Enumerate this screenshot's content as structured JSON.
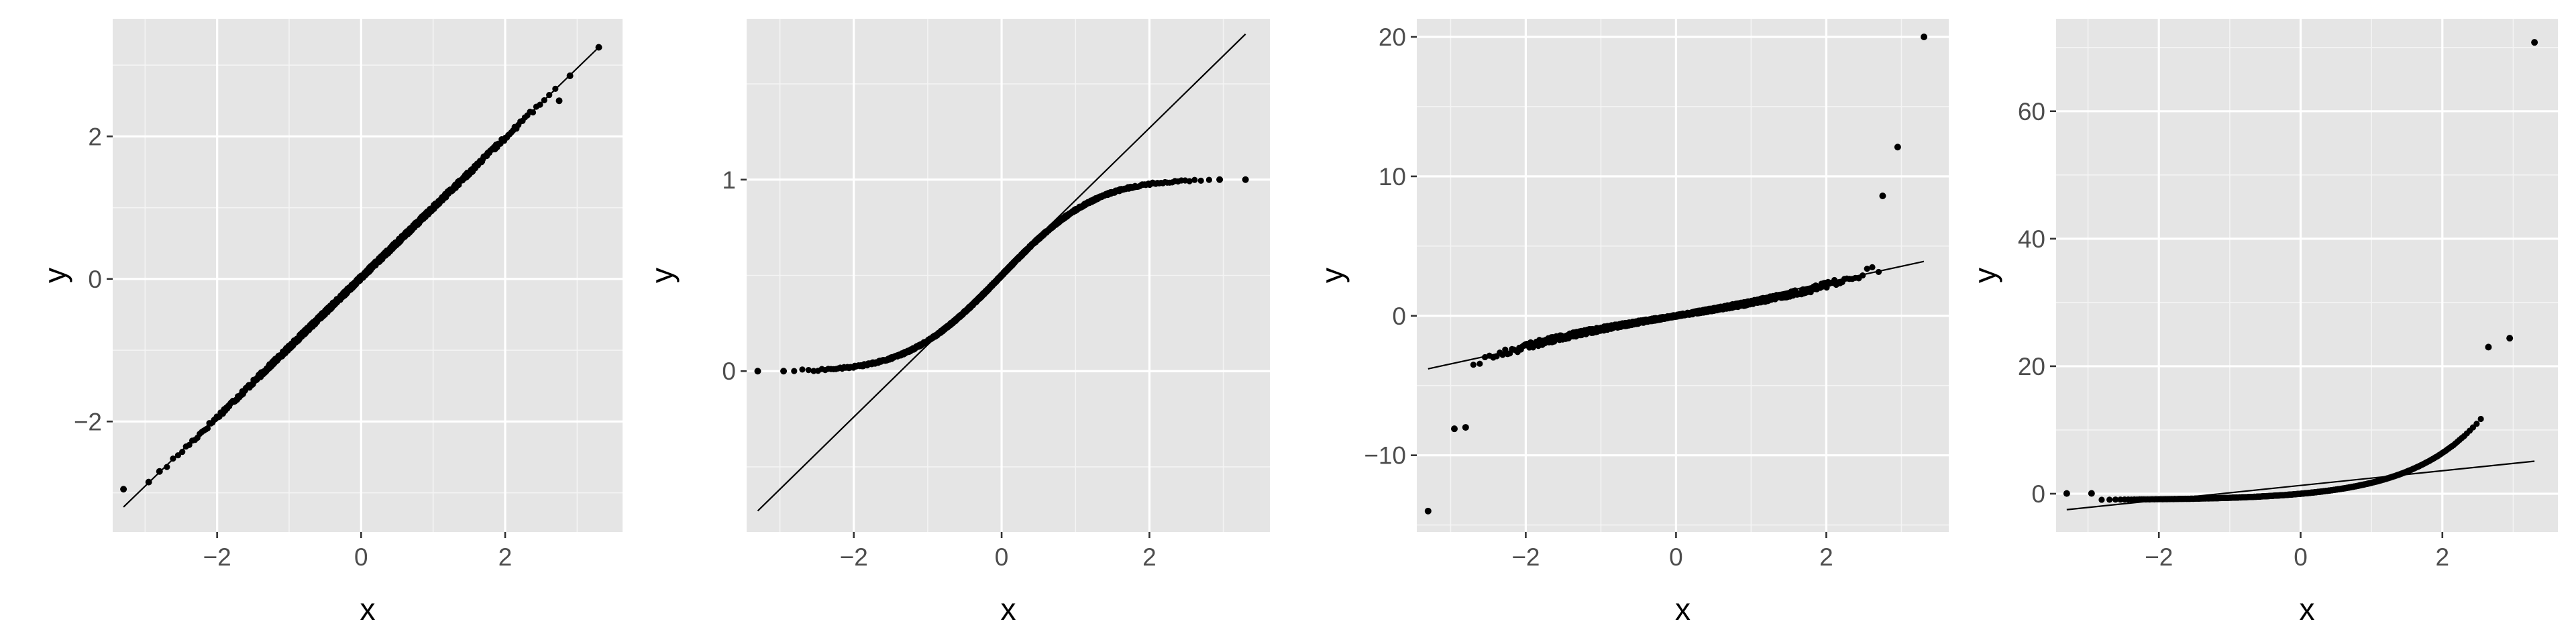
{
  "chart_data": [
    {
      "type": "scatter",
      "title": "",
      "xlabel": "x",
      "ylabel": "y",
      "xlim": [
        -3.45,
        3.63
      ],
      "ylim": [
        -3.55,
        3.65
      ],
      "xticks": [
        -2,
        0,
        2
      ],
      "yticks": [
        -2,
        0,
        2
      ],
      "grid": true,
      "distribution": "normal",
      "ref_line": [
        [
          -3.3,
          -3.2
        ],
        [
          3.3,
          3.25
        ]
      ],
      "sample_extremes": [
        [
          -3.3,
          -2.95
        ],
        [
          -2.95,
          -2.85
        ],
        [
          -2.8,
          -2.7
        ],
        [
          2.75,
          2.5
        ],
        [
          2.9,
          2.85
        ],
        [
          3.3,
          3.25
        ]
      ]
    },
    {
      "type": "scatter",
      "title": "",
      "xlabel": "x",
      "ylabel": "y",
      "xlim": [
        -3.45,
        3.63
      ],
      "ylim": [
        -0.84,
        1.84
      ],
      "xticks": [
        -2,
        0,
        2
      ],
      "yticks": [
        0,
        1
      ],
      "grid": true,
      "distribution": "uniform",
      "ref_line": [
        [
          -3.3,
          -0.73
        ],
        [
          3.3,
          1.76
        ]
      ],
      "sample_extremes": [
        [
          -3.3,
          0.0
        ],
        [
          -2.95,
          0.0
        ],
        [
          2.95,
          1.0
        ],
        [
          3.3,
          1.0
        ]
      ]
    },
    {
      "type": "scatter",
      "title": "",
      "xlabel": "x",
      "ylabel": "y",
      "xlim": [
        -3.45,
        3.63
      ],
      "ylim": [
        -15.5,
        21.3
      ],
      "xticks": [
        -2,
        0,
        2
      ],
      "yticks": [
        -10,
        0,
        10,
        20
      ],
      "grid": true,
      "distribution": "t",
      "ref_line": [
        [
          -3.3,
          -3.8
        ],
        [
          3.3,
          3.9
        ]
      ],
      "sample_extremes": [
        [
          -3.3,
          -14.0
        ],
        [
          -2.95,
          -8.1
        ],
        [
          -2.8,
          -8.0
        ],
        [
          2.75,
          8.6
        ],
        [
          2.95,
          12.1
        ],
        [
          3.3,
          20.0
        ]
      ]
    },
    {
      "type": "scatter",
      "title": "",
      "xlabel": "x",
      "ylabel": "y",
      "xlim": [
        -3.45,
        3.63
      ],
      "ylim": [
        -6.0,
        74.5
      ],
      "xticks": [
        -2,
        0,
        2
      ],
      "yticks": [
        0,
        20,
        40,
        60
      ],
      "grid": true,
      "distribution": "lognormal",
      "ref_line": [
        [
          -3.3,
          -2.5
        ],
        [
          3.3,
          5.1
        ]
      ],
      "sample_extremes": [
        [
          -3.3,
          0.04
        ],
        [
          -2.95,
          0.05
        ],
        [
          2.65,
          23.0
        ],
        [
          2.95,
          24.4
        ],
        [
          3.3,
          70.8
        ]
      ]
    }
  ]
}
